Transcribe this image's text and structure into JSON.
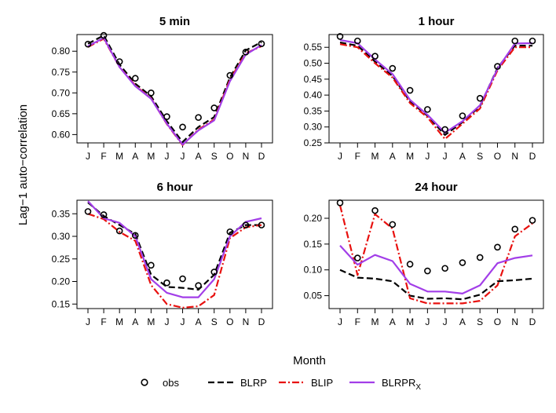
{
  "figure": {
    "ylabel": "Lag−1 auto−correlation",
    "xlabel": "Month"
  },
  "legend": {
    "entries": [
      {
        "key": "obs",
        "label": "obs",
        "sub": ""
      },
      {
        "key": "BLRP",
        "label": "BLRP",
        "sub": ""
      },
      {
        "key": "BLIP",
        "label": "BLIP",
        "sub": ""
      },
      {
        "key": "BLRPRx",
        "label": "BLRPR",
        "sub": "X"
      }
    ]
  },
  "colors": {
    "obs": "#000000",
    "BLRP": "#000000",
    "BLIP": "#e8110f",
    "BLRPRx": "#a23ee8"
  },
  "chart_data": [
    {
      "type": "line",
      "title": "5 min",
      "categories": [
        "J",
        "F",
        "M",
        "A",
        "M",
        "J",
        "J",
        "A",
        "S",
        "O",
        "N",
        "D"
      ],
      "ylim": [
        0.58,
        0.84
      ],
      "yticks": [
        0.6,
        0.65,
        0.7,
        0.75,
        0.8
      ],
      "ytick_labels": [
        "0.60",
        "0.65",
        "0.70",
        "0.75",
        "0.80"
      ],
      "series": [
        {
          "name": "obs",
          "style": "points",
          "values": [
            0.817,
            0.838,
            0.775,
            0.735,
            0.7,
            0.643,
            0.618,
            0.641,
            0.664,
            0.742,
            0.798,
            0.818
          ]
        },
        {
          "name": "BLRP",
          "style": "dashed",
          "values": [
            0.818,
            0.838,
            0.768,
            0.722,
            0.692,
            0.632,
            0.582,
            0.618,
            0.642,
            0.737,
            0.802,
            0.822
          ]
        },
        {
          "name": "BLIP",
          "style": "dotdash",
          "values": [
            0.81,
            0.83,
            0.762,
            0.718,
            0.687,
            0.625,
            0.575,
            0.612,
            0.636,
            0.732,
            0.795,
            0.812
          ]
        },
        {
          "name": "BLRPRx",
          "style": "solid",
          "values": [
            0.812,
            0.832,
            0.762,
            0.716,
            0.686,
            0.626,
            0.576,
            0.61,
            0.634,
            0.728,
            0.792,
            0.815
          ]
        }
      ]
    },
    {
      "type": "line",
      "title": "1 hour",
      "categories": [
        "J",
        "F",
        "M",
        "A",
        "M",
        "J",
        "J",
        "A",
        "S",
        "O",
        "N",
        "D"
      ],
      "ylim": [
        0.25,
        0.59
      ],
      "yticks": [
        0.25,
        0.3,
        0.35,
        0.4,
        0.45,
        0.5,
        0.55
      ],
      "ytick_labels": [
        "0.25",
        "0.30",
        "0.35",
        "0.40",
        "0.45",
        "0.50",
        "0.55"
      ],
      "series": [
        {
          "name": "obs",
          "style": "points",
          "values": [
            0.584,
            0.57,
            0.522,
            0.484,
            0.415,
            0.355,
            0.292,
            0.335,
            0.39,
            0.49,
            0.57,
            0.57
          ]
        },
        {
          "name": "BLRP",
          "style": "dashed",
          "values": [
            0.565,
            0.555,
            0.505,
            0.46,
            0.38,
            0.335,
            0.275,
            0.315,
            0.365,
            0.485,
            0.555,
            0.555
          ]
        },
        {
          "name": "BLIP",
          "style": "dotdash",
          "values": [
            0.56,
            0.55,
            0.5,
            0.455,
            0.375,
            0.33,
            0.262,
            0.31,
            0.358,
            0.478,
            0.55,
            0.55
          ]
        },
        {
          "name": "BLRPRx",
          "style": "solid",
          "values": [
            0.573,
            0.563,
            0.512,
            0.466,
            0.385,
            0.338,
            0.282,
            0.318,
            0.368,
            0.482,
            0.562,
            0.563
          ]
        }
      ]
    },
    {
      "type": "line",
      "title": "6 hour",
      "categories": [
        "J",
        "F",
        "M",
        "A",
        "M",
        "J",
        "J",
        "A",
        "S",
        "O",
        "N",
        "D"
      ],
      "ylim": [
        0.14,
        0.38
      ],
      "yticks": [
        0.15,
        0.2,
        0.25,
        0.3,
        0.35
      ],
      "ytick_labels": [
        "0.15",
        "0.20",
        "0.25",
        "0.30",
        "0.35"
      ],
      "series": [
        {
          "name": "obs",
          "style": "points",
          "values": [
            0.355,
            0.348,
            0.312,
            0.302,
            0.236,
            0.197,
            0.206,
            0.191,
            0.221,
            0.31,
            0.325,
            0.325
          ]
        },
        {
          "name": "BLRP",
          "style": "dashed",
          "values": [
            0.375,
            0.345,
            0.325,
            0.305,
            0.215,
            0.188,
            0.186,
            0.182,
            0.215,
            0.308,
            0.325,
            0.325
          ]
        },
        {
          "name": "BLIP",
          "style": "dotdash",
          "values": [
            0.35,
            0.338,
            0.31,
            0.29,
            0.192,
            0.15,
            0.142,
            0.145,
            0.17,
            0.296,
            0.32,
            0.325
          ]
        },
        {
          "name": "BLRPRx",
          "style": "solid",
          "values": [
            0.378,
            0.34,
            0.33,
            0.3,
            0.205,
            0.175,
            0.165,
            0.165,
            0.205,
            0.3,
            0.332,
            0.34
          ]
        }
      ]
    },
    {
      "type": "line",
      "title": "24 hour",
      "categories": [
        "J",
        "F",
        "M",
        "A",
        "M",
        "J",
        "J",
        "A",
        "S",
        "O",
        "N",
        "D"
      ],
      "ylim": [
        0.025,
        0.235
      ],
      "yticks": [
        0.05,
        0.1,
        0.15,
        0.2
      ],
      "ytick_labels": [
        "0.05",
        "0.10",
        "0.15",
        "0.20"
      ],
      "series": [
        {
          "name": "obs",
          "style": "points",
          "values": [
            0.23,
            0.123,
            0.215,
            0.188,
            0.111,
            0.098,
            0.103,
            0.114,
            0.124,
            0.144,
            0.179,
            0.196
          ]
        },
        {
          "name": "BLRP",
          "style": "dashed",
          "values": [
            0.1,
            0.085,
            0.083,
            0.078,
            0.05,
            0.044,
            0.045,
            0.043,
            0.052,
            0.078,
            0.08,
            0.083
          ]
        },
        {
          "name": "BLIP",
          "style": "dotdash",
          "values": [
            0.225,
            0.09,
            0.208,
            0.18,
            0.045,
            0.035,
            0.035,
            0.035,
            0.04,
            0.07,
            0.165,
            0.19
          ]
        },
        {
          "name": "BLRPRx",
          "style": "solid",
          "values": [
            0.147,
            0.11,
            0.129,
            0.117,
            0.073,
            0.058,
            0.058,
            0.054,
            0.07,
            0.113,
            0.123,
            0.128
          ]
        }
      ]
    }
  ]
}
